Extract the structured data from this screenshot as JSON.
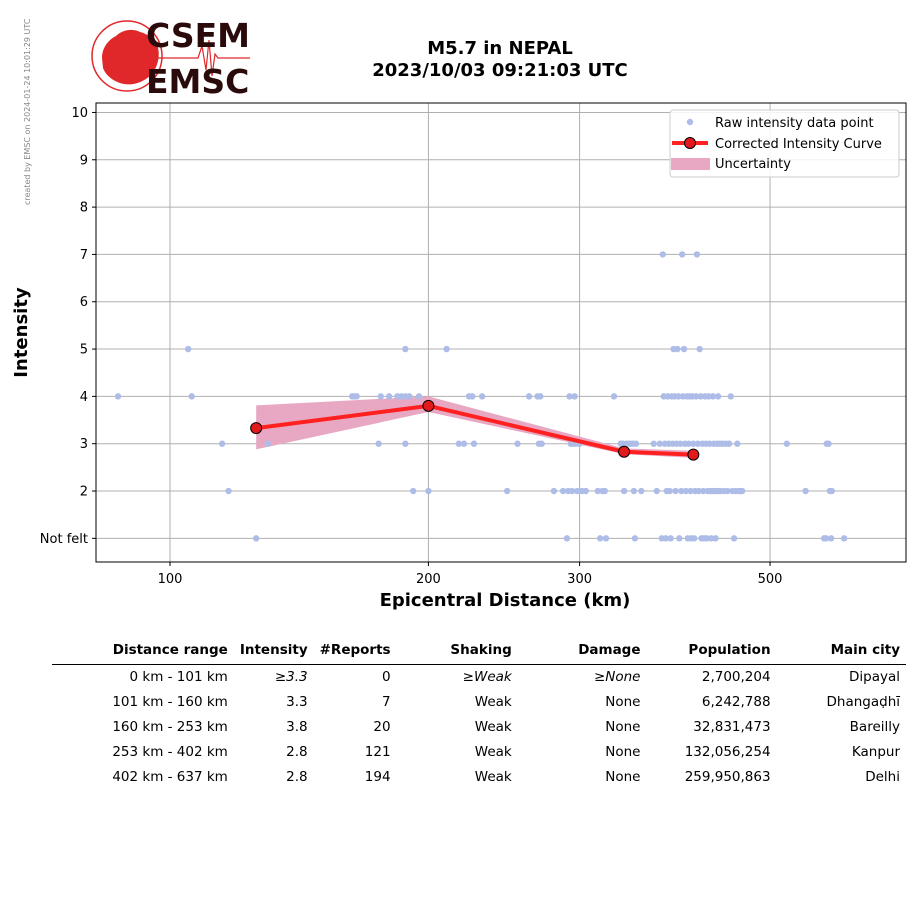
{
  "credit": "created by EMSC on 2024-01-24 10:01:29 UTC",
  "logo": {
    "line1": "CSEM",
    "line2": "EMSC"
  },
  "title": {
    "line1": "M5.7 in NEPAL",
    "line2": "2023/10/03 09:21:03 UTC"
  },
  "colors": {
    "raw": "#aebde8",
    "curve": "#ff2020",
    "curve_marker": "#e31a1c",
    "band": "#e8a8c4",
    "grid": "#b0b0b0",
    "logo_red": "#e0282a",
    "logo_dark": "#2a0a0a"
  },
  "chart_data": {
    "type": "scatter",
    "xlabel": "Epicentral Distance (km)",
    "ylabel": "Intensity",
    "xscale": "log",
    "xlim": [
      82,
      720
    ],
    "ylim": [
      0.5,
      10.2
    ],
    "xticks": [
      {
        "value": 100,
        "label": "100"
      },
      {
        "value": 200,
        "label": "200"
      },
      {
        "value": 300,
        "label": "300"
      },
      {
        "value": 500,
        "label": "500"
      }
    ],
    "yticks": [
      {
        "value": 1,
        "label": "Not felt"
      },
      {
        "value": 2,
        "label": "2"
      },
      {
        "value": 3,
        "label": "3"
      },
      {
        "value": 4,
        "label": "4"
      },
      {
        "value": 5,
        "label": "5"
      },
      {
        "value": 6,
        "label": "6"
      },
      {
        "value": 7,
        "label": "7"
      },
      {
        "value": 8,
        "label": "8"
      },
      {
        "value": 9,
        "label": "9"
      },
      {
        "value": 10,
        "label": "10"
      }
    ],
    "grid": true,
    "legend": {
      "position": "top-right",
      "entries": [
        "Raw intensity data point",
        "Corrected Intensity Curve",
        "Uncertainty"
      ]
    },
    "raw_points": [
      [
        87,
        4
      ],
      [
        106,
        4
      ],
      [
        105,
        5
      ],
      [
        115,
        3
      ],
      [
        117,
        2
      ],
      [
        126,
        1
      ],
      [
        130,
        3
      ],
      [
        163,
        4
      ],
      [
        164,
        4
      ],
      [
        165,
        4
      ],
      [
        175,
        3
      ],
      [
        176,
        4
      ],
      [
        180,
        4
      ],
      [
        184,
        4
      ],
      [
        186,
        4
      ],
      [
        188,
        4
      ],
      [
        190,
        4
      ],
      [
        188,
        3
      ],
      [
        188,
        5
      ],
      [
        195,
        4
      ],
      [
        192,
        2
      ],
      [
        200,
        2
      ],
      [
        210,
        5
      ],
      [
        217,
        3
      ],
      [
        220,
        3
      ],
      [
        223,
        4
      ],
      [
        225,
        4
      ],
      [
        226,
        3
      ],
      [
        231,
        4
      ],
      [
        247,
        2
      ],
      [
        254,
        3
      ],
      [
        262,
        4
      ],
      [
        268,
        4
      ],
      [
        270,
        4
      ],
      [
        269,
        3
      ],
      [
        271,
        3
      ],
      [
        280,
        2
      ],
      [
        287,
        2
      ],
      [
        290,
        1
      ],
      [
        291,
        2
      ],
      [
        292,
        4
      ],
      [
        293,
        3
      ],
      [
        294,
        2
      ],
      [
        295,
        3
      ],
      [
        296,
        4
      ],
      [
        298,
        2
      ],
      [
        297,
        3
      ],
      [
        300,
        3
      ],
      [
        302,
        2
      ],
      [
        305,
        2
      ],
      [
        315,
        2
      ],
      [
        317,
        1
      ],
      [
        319,
        2
      ],
      [
        321,
        2
      ],
      [
        322,
        1
      ],
      [
        329,
        4
      ],
      [
        335,
        3
      ],
      [
        337,
        3
      ],
      [
        338,
        2
      ],
      [
        340,
        3
      ],
      [
        342,
        3
      ],
      [
        344,
        3
      ],
      [
        346,
        3
      ],
      [
        347,
        2
      ],
      [
        348,
        1
      ],
      [
        349,
        3
      ],
      [
        354,
        2
      ],
      [
        366,
        3
      ],
      [
        369,
        2
      ],
      [
        372,
        3
      ],
      [
        374,
        1
      ],
      [
        375,
        7
      ],
      [
        376,
        4
      ],
      [
        377,
        3
      ],
      [
        378,
        1
      ],
      [
        379,
        2
      ],
      [
        380,
        4
      ],
      [
        381,
        3
      ],
      [
        382,
        2
      ],
      [
        383,
        1
      ],
      [
        384,
        4
      ],
      [
        385,
        3
      ],
      [
        386,
        5
      ],
      [
        387,
        4
      ],
      [
        388,
        2
      ],
      [
        389,
        3
      ],
      [
        390,
        5
      ],
      [
        391,
        4
      ],
      [
        392,
        1
      ],
      [
        393,
        3
      ],
      [
        394,
        2
      ],
      [
        395,
        7
      ],
      [
        396,
        4
      ],
      [
        397,
        5
      ],
      [
        398,
        3
      ],
      [
        399,
        2
      ],
      [
        400,
        4
      ],
      [
        401,
        1
      ],
      [
        402,
        3
      ],
      [
        403,
        4
      ],
      [
        404,
        2
      ],
      [
        405,
        1
      ],
      [
        406,
        4
      ],
      [
        407,
        3
      ],
      [
        408,
        1
      ],
      [
        409,
        2
      ],
      [
        410,
        4
      ],
      [
        411,
        7
      ],
      [
        412,
        3
      ],
      [
        413,
        2
      ],
      [
        414,
        5
      ],
      [
        415,
        4
      ],
      [
        416,
        1
      ],
      [
        417,
        3
      ],
      [
        418,
        2
      ],
      [
        419,
        1
      ],
      [
        420,
        4
      ],
      [
        421,
        3
      ],
      [
        422,
        1
      ],
      [
        423,
        2
      ],
      [
        424,
        4
      ],
      [
        425,
        3
      ],
      [
        426,
        2
      ],
      [
        427,
        1
      ],
      [
        428,
        2
      ],
      [
        429,
        4
      ],
      [
        430,
        3
      ],
      [
        431,
        2
      ],
      [
        432,
        1
      ],
      [
        433,
        2
      ],
      [
        434,
        3
      ],
      [
        435,
        4
      ],
      [
        436,
        2
      ],
      [
        437,
        3
      ],
      [
        438,
        2
      ],
      [
        440,
        3
      ],
      [
        442,
        2
      ],
      [
        444,
        3
      ],
      [
        446,
        2
      ],
      [
        448,
        3
      ],
      [
        450,
        4
      ],
      [
        452,
        2
      ],
      [
        454,
        1
      ],
      [
        456,
        2
      ],
      [
        458,
        3
      ],
      [
        460,
        2
      ],
      [
        462,
        2
      ],
      [
        464,
        2
      ],
      [
        523,
        3
      ],
      [
        550,
        2
      ],
      [
        578,
        1
      ],
      [
        581,
        1
      ],
      [
        582,
        3
      ],
      [
        585,
        3
      ],
      [
        587,
        2
      ],
      [
        589,
        1
      ],
      [
        590,
        2
      ],
      [
        610,
        1
      ]
    ],
    "curve": [
      {
        "x": 126,
        "y": 3.33,
        "lo": 2.88,
        "hi": 3.81
      },
      {
        "x": 200,
        "y": 3.8,
        "lo": 3.67,
        "hi": 4.0
      },
      {
        "x": 338,
        "y": 2.83,
        "lo": 2.78,
        "hi": 2.9
      },
      {
        "x": 407,
        "y": 2.77,
        "lo": 2.7,
        "hi": 2.85
      }
    ]
  },
  "table": {
    "headers": [
      "Distance range",
      "Intensity",
      "#Reports",
      "Shaking",
      "Damage",
      "Population",
      "Main city"
    ],
    "rows": [
      {
        "range": "0 km -  101 km",
        "intensity": "≥3.3",
        "reports": "0",
        "shaking": "≥Weak",
        "damage": "≥None",
        "population": "2,700,204",
        "city": "Dipayal"
      },
      {
        "range": "101 km -  160 km",
        "intensity": "3.3",
        "reports": "7",
        "shaking": "Weak",
        "damage": "None",
        "population": "6,242,788",
        "city": "Dhangaḍhī"
      },
      {
        "range": "160 km -  253 km",
        "intensity": "3.8",
        "reports": "20",
        "shaking": "Weak",
        "damage": "None",
        "population": "32,831,473",
        "city": "Bareilly"
      },
      {
        "range": "253 km -  402 km",
        "intensity": "2.8",
        "reports": "121",
        "shaking": "Weak",
        "damage": "None",
        "population": "132,056,254",
        "city": "Kanpur"
      },
      {
        "range": "402 km -  637 km",
        "intensity": "2.8",
        "reports": "194",
        "shaking": "Weak",
        "damage": "None",
        "population": "259,950,863",
        "city": "Delhi"
      }
    ]
  }
}
